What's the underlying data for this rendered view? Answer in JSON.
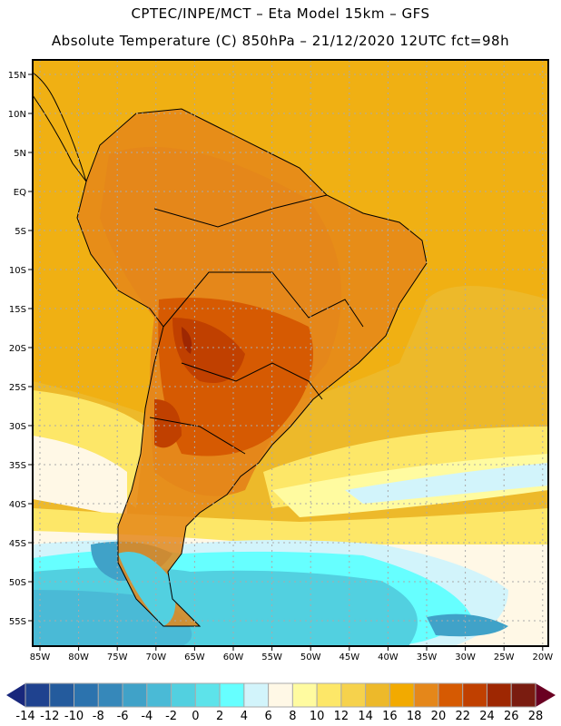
{
  "header": {
    "title": "CPTEC/INPE/MCT –  Eta Model 15km – GFS",
    "subtitle": "Absolute Temperature (C) 850hPa – 21/12/2020 12UTC fct=98h"
  },
  "map": {
    "lat_labels": [
      "15N",
      "10N",
      "5N",
      "EQ",
      "5S",
      "10S",
      "15S",
      "20S",
      "25S",
      "30S",
      "35S",
      "40S",
      "45S",
      "50S",
      "55S"
    ],
    "lat_values": [
      15,
      10,
      5,
      0,
      -5,
      -10,
      -15,
      -20,
      -25,
      -30,
      -35,
      -40,
      -45,
      -50,
      -55
    ],
    "lon_labels": [
      "85W",
      "80W",
      "75W",
      "70W",
      "65W",
      "60W",
      "55W",
      "50W",
      "45W",
      "40W",
      "35W",
      "30W",
      "25W",
      "20W"
    ],
    "lon_values": [
      -85,
      -80,
      -75,
      -70,
      -65,
      -60,
      -55,
      -50,
      -45,
      -40,
      -35,
      -30,
      -25,
      -20
    ]
  },
  "colorbar": {
    "labels": [
      "-14",
      "-12",
      "-10",
      "-8",
      "-6",
      "-4",
      "-2",
      "0",
      "2",
      "4",
      "6",
      "8",
      "10",
      "12",
      "14",
      "16",
      "18",
      "20",
      "22",
      "24",
      "26",
      "28"
    ],
    "colors": [
      "#1f428f",
      "#245b9d",
      "#2c73ae",
      "#3688ba",
      "#40a2c8",
      "#4abad6",
      "#52d0e0",
      "#5de3ea",
      "#66ffff",
      "#d2f4fb",
      "#fff8e6",
      "#fffba0",
      "#fde768",
      "#f6d24c",
      "#edb92a",
      "#f2aa00",
      "#e5871a",
      "#d65a02",
      "#c04000",
      "#9e2702",
      "#7a1c10"
    ],
    "low_color": "#18277c",
    "high_color": "#6a0022"
  }
}
